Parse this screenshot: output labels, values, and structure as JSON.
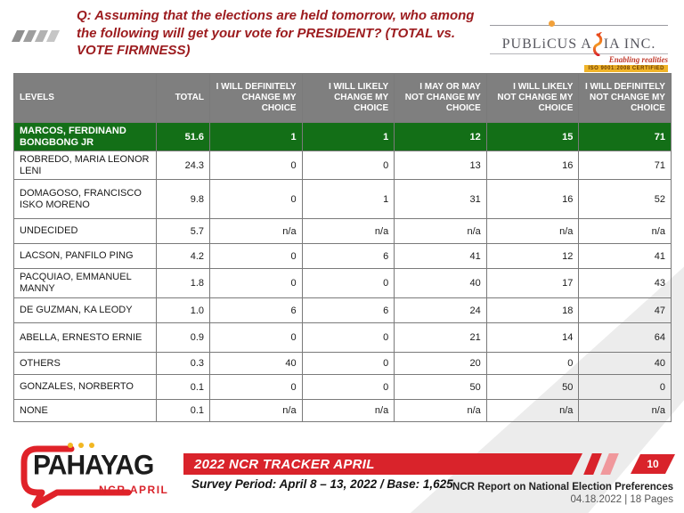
{
  "question": "Q: Assuming that the elections are held tomorrow, who among the following will get your vote for PRESIDENT? (TOTAL vs. VOTE FIRMNESS)",
  "publicus_logo": {
    "name_left": "PUBLiCUS A",
    "name_right": "IA INC.",
    "tagline": "Enabling realities",
    "badge": "ISO 9001:2008 CERTIFIED"
  },
  "table": {
    "headers": [
      "LEVELS",
      "TOTAL",
      "I WILL DEFINITELY CHANGE MY CHOICE",
      "I WILL LIKELY CHANGE MY CHOICE",
      "I MAY OR MAY NOT CHANGE MY CHOICE",
      "I WILL LIKELY NOT CHANGE MY CHOICE",
      "I WILL DEFINITELY NOT CHANGE MY CHOICE"
    ],
    "rows": [
      {
        "level": "MARCOS, FERDINAND BONGBONG JR",
        "total": "51.6",
        "values": [
          "1",
          "1",
          "12",
          "15",
          "71"
        ],
        "highlight": true
      },
      {
        "level": "ROBREDO, MARIA LEONOR LENI",
        "total": "24.3",
        "values": [
          "0",
          "0",
          "13",
          "16",
          "71"
        ],
        "highlight": false
      },
      {
        "level": "DOMAGOSO, FRANCISCO ISKO MORENO",
        "total": "9.8",
        "values": [
          "0",
          "1",
          "31",
          "16",
          "52"
        ],
        "highlight": false
      },
      {
        "level": "UNDECIDED",
        "total": "5.7",
        "values": [
          "n/a",
          "n/a",
          "n/a",
          "n/a",
          "n/a"
        ],
        "highlight": false
      },
      {
        "level": "LACSON, PANFILO PING",
        "total": "4.2",
        "values": [
          "0",
          "6",
          "41",
          "12",
          "41"
        ],
        "highlight": false
      },
      {
        "level": "PACQUIAO, EMMANUEL MANNY",
        "total": "1.8",
        "values": [
          "0",
          "0",
          "40",
          "17",
          "43"
        ],
        "highlight": false
      },
      {
        "level": "DE GUZMAN, KA LEODY",
        "total": "1.0",
        "values": [
          "6",
          "6",
          "24",
          "18",
          "47"
        ],
        "highlight": false
      },
      {
        "level": "ABELLA, ERNESTO ERNIE",
        "total": "0.9",
        "values": [
          "0",
          "0",
          "21",
          "14",
          "64"
        ],
        "highlight": false
      },
      {
        "level": "OTHERS",
        "total": "0.3",
        "values": [
          "40",
          "0",
          "20",
          "0",
          "40"
        ],
        "highlight": false
      },
      {
        "level": "GONZALES, NORBERTO",
        "total": "0.1",
        "values": [
          "0",
          "0",
          "50",
          "50",
          "0"
        ],
        "highlight": false
      },
      {
        "level": "NONE",
        "total": "0.1",
        "values": [
          "n/a",
          "n/a",
          "n/a",
          "n/a",
          "n/a"
        ],
        "highlight": false
      }
    ]
  },
  "chart_data": {
    "type": "table",
    "title": "Q: Assuming that the elections are held tomorrow, who among the following will get your vote for PRESIDENT? (TOTAL vs. VOTE FIRMNESS)",
    "columns": [
      "LEVELS",
      "TOTAL",
      "I WILL DEFINITELY CHANGE MY CHOICE",
      "I WILL LIKELY CHANGE MY CHOICE",
      "I MAY OR MAY NOT CHANGE MY CHOICE",
      "I WILL LIKELY NOT CHANGE MY CHOICE",
      "I WILL DEFINITELY NOT CHANGE MY CHOICE"
    ],
    "rows": [
      [
        "MARCOS, FERDINAND BONGBONG JR",
        51.6,
        1,
        1,
        12,
        15,
        71
      ],
      [
        "ROBREDO, MARIA LEONOR LENI",
        24.3,
        0,
        0,
        13,
        16,
        71
      ],
      [
        "DOMAGOSO, FRANCISCO ISKO MORENO",
        9.8,
        0,
        1,
        31,
        16,
        52
      ],
      [
        "UNDECIDED",
        5.7,
        null,
        null,
        null,
        null,
        null
      ],
      [
        "LACSON, PANFILO PING",
        4.2,
        0,
        6,
        41,
        12,
        41
      ],
      [
        "PACQUIAO, EMMANUEL MANNY",
        1.8,
        0,
        0,
        40,
        17,
        43
      ],
      [
        "DE GUZMAN, KA LEODY",
        1.0,
        6,
        6,
        24,
        18,
        47
      ],
      [
        "ABELLA, ERNESTO ERNIE",
        0.9,
        0,
        0,
        21,
        14,
        64
      ],
      [
        "OTHERS",
        0.3,
        40,
        0,
        20,
        0,
        40
      ],
      [
        "GONZALES, NORBERTO",
        0.1,
        0,
        0,
        50,
        50,
        0
      ],
      [
        "NONE",
        0.1,
        null,
        null,
        null,
        null,
        null
      ]
    ],
    "note": "n/a rendered for null cells; MARCOS row highlighted green"
  },
  "footer": {
    "pahayag_wordmark": "PAHAYAG",
    "pahayag_sub": "NCR APRIL",
    "banner_title": "2022 NCR TRACKER APRIL",
    "survey_period": "Survey Period: April 8 – 13, 2022 / Base: 1,625",
    "page_number": "10",
    "report_line1": "NCR Report on National Election Preferences",
    "report_line2": "04.18.2022 | 18 Pages"
  },
  "colors": {
    "highlight_green": "#136f17",
    "accent_red": "#d9232b",
    "question_maroon": "#9c1b1e",
    "header_gray": "#7f7f7f",
    "gold_dot": "#f2b722"
  }
}
